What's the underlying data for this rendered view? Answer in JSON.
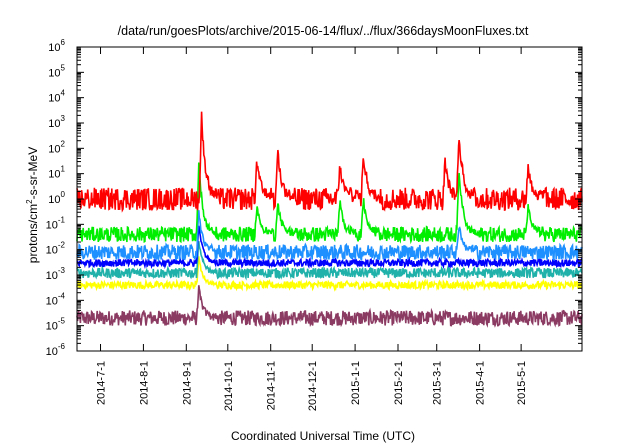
{
  "chart_data": {
    "type": "line",
    "title": "/data/run/goesPlots/archive/2015-06-14/flux/../flux/366daysMoonFluxes.txt",
    "xlabel": "Coordinated Universal Time (UTC)",
    "ylabel": {
      "prefix": "protons/cm",
      "sup": "2",
      "suffix": "-s-sr-MeV"
    },
    "y_scale": "log",
    "ylim": [
      1e-06,
      1000000.0
    ],
    "y_ticks": [
      {
        "base": "10",
        "exp": "-6",
        "value": 1e-06
      },
      {
        "base": "10",
        "exp": "-5",
        "value": 1e-05
      },
      {
        "base": "10",
        "exp": "-4",
        "value": 0.0001
      },
      {
        "base": "10",
        "exp": "-3",
        "value": 0.001
      },
      {
        "base": "10",
        "exp": "-2",
        "value": 0.01
      },
      {
        "base": "10",
        "exp": "-1",
        "value": 0.1
      },
      {
        "base": "10",
        "exp": "0",
        "value": 1
      },
      {
        "base": "10",
        "exp": "1",
        "value": 10
      },
      {
        "base": "10",
        "exp": "2",
        "value": 100
      },
      {
        "base": "10",
        "exp": "3",
        "value": 1000
      },
      {
        "base": "10",
        "exp": "4",
        "value": 10000
      },
      {
        "base": "10",
        "exp": "5",
        "value": 100000
      },
      {
        "base": "10",
        "exp": "6",
        "value": 1000000
      }
    ],
    "xlim": [
      "2014-06-14",
      "2015-06-14"
    ],
    "x_ticks": [
      {
        "label": "2014-7-1",
        "date": "2014-07-01"
      },
      {
        "label": "2014-8-1",
        "date": "2014-08-01"
      },
      {
        "label": "2014-9-1",
        "date": "2014-09-01"
      },
      {
        "label": "2014-10-1",
        "date": "2014-10-01"
      },
      {
        "label": "2014-11-1",
        "date": "2014-11-01"
      },
      {
        "label": "2014-12-1",
        "date": "2014-12-01"
      },
      {
        "label": "2015-1-1",
        "date": "2015-01-01"
      },
      {
        "label": "2015-2-1",
        "date": "2015-02-01"
      },
      {
        "label": "2015-3-1",
        "date": "2015-03-01"
      },
      {
        "label": "2015-4-1",
        "date": "2015-04-01"
      },
      {
        "label": "2015-5-1",
        "date": "2015-05-01"
      }
    ],
    "grid": false,
    "series": [
      {
        "color": "#8b3a62",
        "baseline": 2e-05,
        "noise_decades": 0.3,
        "events": [
          {
            "date": "2014-09-10",
            "peak": 0.0003
          }
        ]
      },
      {
        "color": "#ffff00",
        "baseline": 0.0004,
        "noise_decades": 0.15,
        "events": [
          {
            "date": "2014-09-10",
            "peak": 0.005
          }
        ]
      },
      {
        "color": "#20b2aa",
        "baseline": 0.0012,
        "noise_decades": 0.2,
        "events": [
          {
            "date": "2014-09-10",
            "peak": 0.02
          }
        ]
      },
      {
        "color": "#0000ff",
        "baseline": 0.003,
        "noise_decades": 0.15,
        "events": [
          {
            "date": "2014-09-10",
            "peak": 0.1
          }
        ]
      },
      {
        "color": "#1e90ff",
        "baseline": 0.008,
        "noise_decades": 0.3,
        "events": [
          {
            "date": "2014-09-10",
            "peak": 0.3
          },
          {
            "date": "2015-03-17",
            "peak": 0.1
          }
        ]
      },
      {
        "color": "#00ee00",
        "baseline": 0.04,
        "noise_decades": 0.3,
        "events": [
          {
            "date": "2014-09-10",
            "peak": 30
          },
          {
            "date": "2014-10-22",
            "peak": 0.5
          },
          {
            "date": "2014-11-06",
            "peak": 0.8
          },
          {
            "date": "2014-12-21",
            "peak": 0.8
          },
          {
            "date": "2015-01-07",
            "peak": 1.0
          },
          {
            "date": "2015-03-17",
            "peak": 20
          },
          {
            "date": "2015-05-06",
            "peak": 0.5
          }
        ]
      },
      {
        "color": "#ff0000",
        "baseline": 1.0,
        "noise_decades": 0.45,
        "events": [
          {
            "date": "2014-09-12",
            "peak": 2000
          },
          {
            "date": "2014-10-22",
            "peak": 30
          },
          {
            "date": "2014-11-06",
            "peak": 80
          },
          {
            "date": "2014-12-21",
            "peak": 20
          },
          {
            "date": "2015-01-07",
            "peak": 60
          },
          {
            "date": "2015-03-07",
            "peak": 30
          },
          {
            "date": "2015-03-17",
            "peak": 500
          },
          {
            "date": "2015-05-06",
            "peak": 20
          }
        ]
      }
    ]
  }
}
